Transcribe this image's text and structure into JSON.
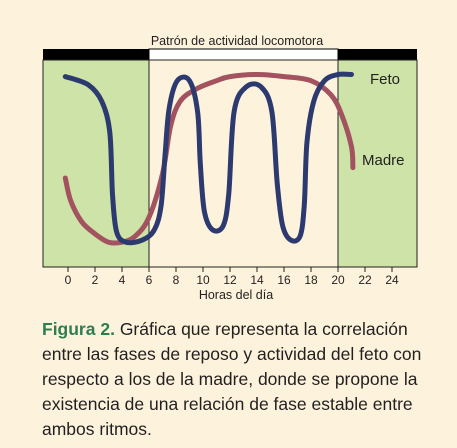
{
  "chart_data": {
    "type": "line",
    "title": "Patrón de actividad locomotora",
    "xlabel": "Horas del día",
    "ylabel": "",
    "xlim": [
      -2,
      26
    ],
    "x_ticks": [
      0,
      2,
      4,
      6,
      8,
      10,
      12,
      14,
      16,
      18,
      20,
      22,
      24
    ],
    "activity_bar_colors": {
      "dark": "#000000",
      "light": "#ffffff"
    },
    "light_period": [
      6,
      20
    ],
    "colors": {
      "shade": "#cde3a8",
      "light_area": "#fdf3dc"
    },
    "series": [
      {
        "name": "Feto",
        "color": "#2d3a70",
        "points": [
          [
            -0.2,
            0.92
          ],
          [
            1.5,
            0.88
          ],
          [
            2.5,
            0.8
          ],
          [
            3.1,
            0.65
          ],
          [
            3.3,
            0.35
          ],
          [
            3.6,
            0.17
          ],
          [
            4.3,
            0.12
          ],
          [
            5.5,
            0.13
          ],
          [
            6.4,
            0.18
          ],
          [
            6.9,
            0.3
          ],
          [
            7.2,
            0.55
          ],
          [
            7.5,
            0.77
          ],
          [
            8.1,
            0.9
          ],
          [
            9.0,
            0.9
          ],
          [
            9.6,
            0.75
          ],
          [
            9.8,
            0.5
          ],
          [
            10.1,
            0.27
          ],
          [
            10.7,
            0.18
          ],
          [
            11.5,
            0.2
          ],
          [
            11.9,
            0.35
          ],
          [
            12.3,
            0.75
          ],
          [
            13.2,
            0.87
          ],
          [
            14.3,
            0.87
          ],
          [
            15.1,
            0.75
          ],
          [
            15.5,
            0.4
          ],
          [
            15.9,
            0.2
          ],
          [
            16.5,
            0.13
          ],
          [
            17.2,
            0.15
          ],
          [
            17.5,
            0.3
          ],
          [
            17.7,
            0.6
          ],
          [
            18.2,
            0.8
          ],
          [
            19.0,
            0.9
          ],
          [
            20.0,
            0.93
          ],
          [
            21.0,
            0.93
          ]
        ],
        "label": "Feto"
      },
      {
        "name": "Madre",
        "color": "#a3525f",
        "points": [
          [
            -0.2,
            0.43
          ],
          [
            0.2,
            0.32
          ],
          [
            1.0,
            0.22
          ],
          [
            2.0,
            0.16
          ],
          [
            3.0,
            0.12
          ],
          [
            4.0,
            0.12
          ],
          [
            5.0,
            0.15
          ],
          [
            6.0,
            0.24
          ],
          [
            7.0,
            0.45
          ],
          [
            7.6,
            0.68
          ],
          [
            8.3,
            0.8
          ],
          [
            9.5,
            0.86
          ],
          [
            11.0,
            0.9
          ],
          [
            12.0,
            0.92
          ],
          [
            14.0,
            0.93
          ],
          [
            16.0,
            0.92
          ],
          [
            18.0,
            0.9
          ],
          [
            19.5,
            0.83
          ],
          [
            20.3,
            0.73
          ],
          [
            21.0,
            0.58
          ],
          [
            21.1,
            0.48
          ]
        ],
        "label": "Madre"
      }
    ]
  },
  "caption": {
    "label": "Figura 2.",
    "text": "Gráfica que representa la correlación entre las fases de reposo y actividad del feto con respecto a los de la madre, donde se propone la existencia de una relación de fase estable entre ambos ritmos."
  }
}
